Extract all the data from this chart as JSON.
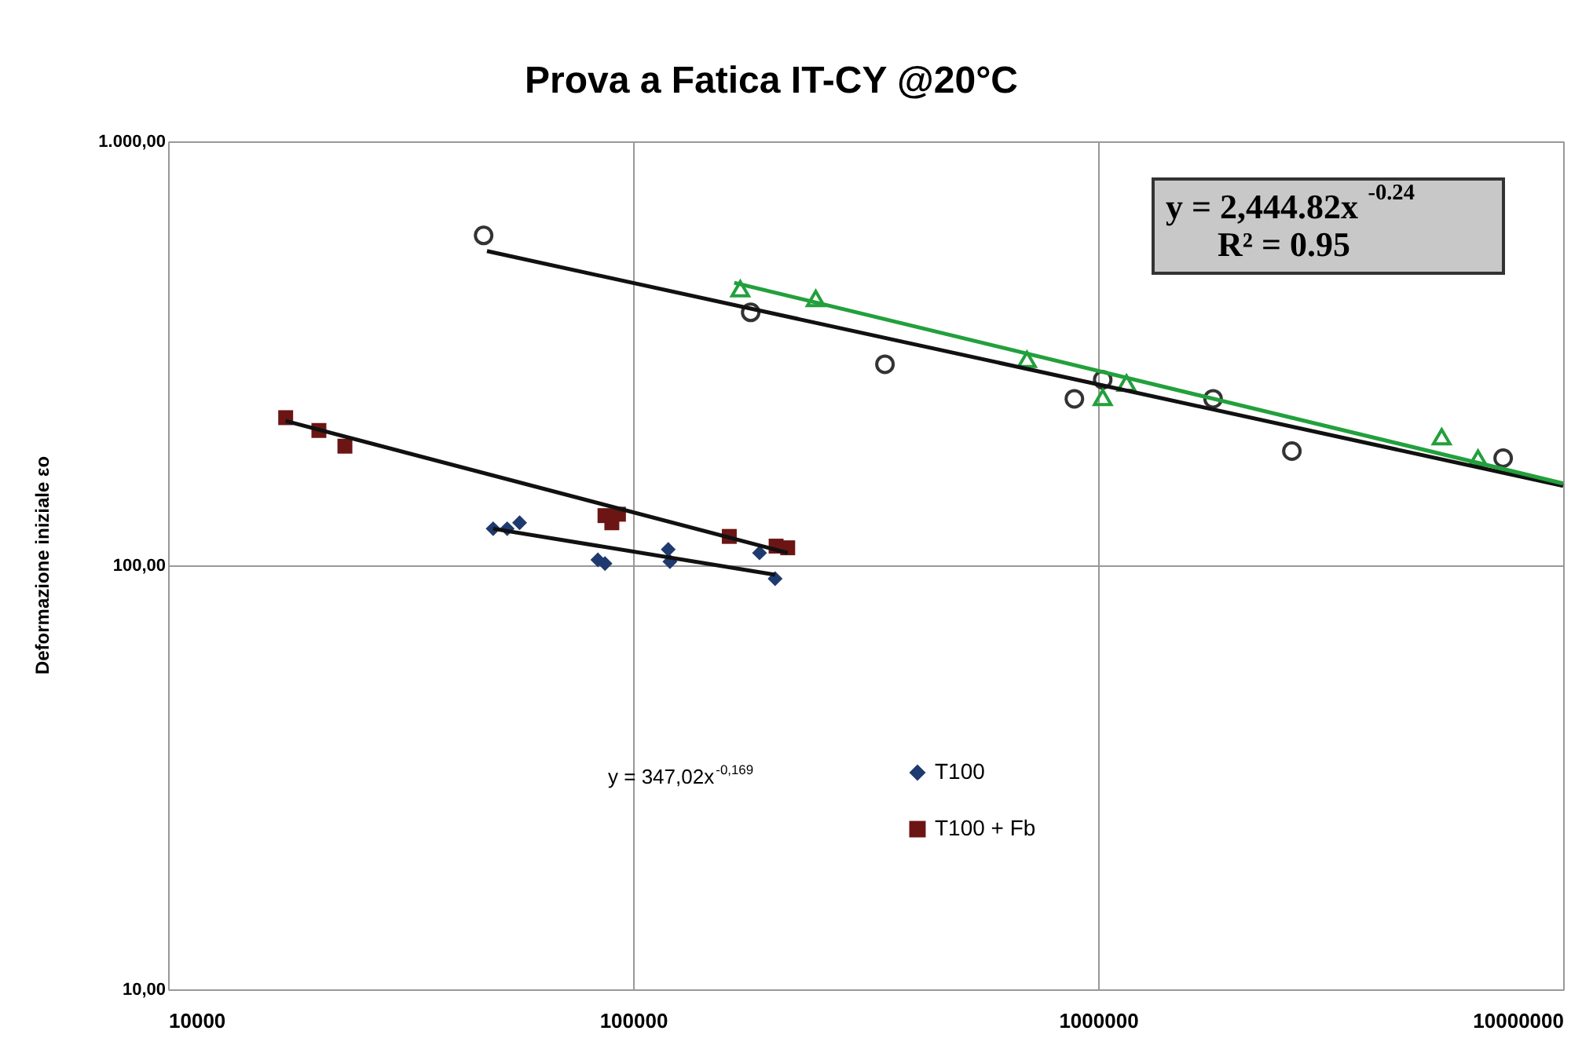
{
  "chart_data": {
    "type": "scatter",
    "title": "Prova a Fatica IT-CY @20°C",
    "ylabel": "Deformazione iniziale εo",
    "log": "xy",
    "grid": true,
    "legend": "bottom",
    "line_style": "solid",
    "xlim": [
      10000,
      10000000
    ],
    "xticks": [
      10000,
      100000,
      1000000,
      10000000
    ],
    "ylim": [
      10,
      1000
    ],
    "yticks": [
      {
        "value": 10,
        "label": "10,00"
      },
      {
        "value": 100,
        "label": "100,00"
      },
      {
        "value": 1000,
        "label": "1.000,00"
      }
    ],
    "series": [
      {
        "name": "T100",
        "marker": "diamond",
        "color": "#1f3a6e",
        "x": [
          50000,
          53600,
          57000,
          84000,
          87000,
          119000,
          120000,
          187000,
          202000
        ],
        "values": [
          122,
          122,
          126,
          103,
          101,
          109,
          102,
          107,
          93
        ]
      },
      {
        "name": "T100 + Fb",
        "marker": "square",
        "color": "#6b1515",
        "x": [
          17900,
          21100,
          24000,
          87000,
          90000,
          93000,
          161000,
          203000,
          215000
        ],
        "values": [
          223,
          208,
          191,
          131,
          126,
          132,
          117,
          111,
          110
        ]
      },
      {
        "marker": "circle",
        "color": "#333333",
        "x": [
          47700,
          179000,
          348000,
          889000,
          1023000,
          1767000,
          2610000,
          7430000
        ],
        "values": [
          600,
          395,
          298,
          247,
          274,
          247,
          186,
          179
        ]
      },
      {
        "marker": "triangle",
        "color": "#22a03c",
        "x": [
          170000,
          247000,
          703000,
          1023000,
          1151000,
          5480000,
          6560000
        ],
        "values": [
          449,
          426,
          306,
          249,
          269,
          201,
          179
        ]
      },
      {
        "type": "line",
        "color": "#111111",
        "x": [
          50000,
          202000
        ],
        "values": [
          122,
          95
        ]
      },
      {
        "type": "line",
        "color": "#111111",
        "x": [
          17900,
          215000
        ],
        "values": [
          219,
          107
        ]
      },
      {
        "type": "line",
        "color": "#111111",
        "x": [
          48500,
          10000000
        ],
        "values": [
          551,
          154
        ]
      },
      {
        "type": "line",
        "color": "#22a03c",
        "x": [
          165000,
          10000000
        ],
        "values": [
          464,
          156
        ]
      }
    ],
    "annotations": [
      "y = 347,02x$^{-0,169}$",
      "y = 2,444.82x$^{-0.24}$",
      "R² = 0.95"
    ]
  }
}
